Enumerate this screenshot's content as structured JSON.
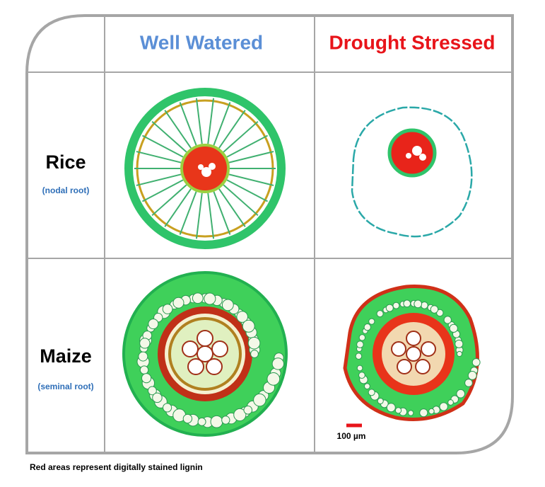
{
  "header": {
    "columns": [
      "Well Watered",
      "Drought Stressed"
    ]
  },
  "rows": [
    {
      "label": "Rice",
      "sublabel": "(nodal root)"
    },
    {
      "label": "Maize",
      "sublabel": "(seminal root)"
    }
  ],
  "scale_bar": "100 µm",
  "caption": "Red areas represent digitally stained lignin"
}
